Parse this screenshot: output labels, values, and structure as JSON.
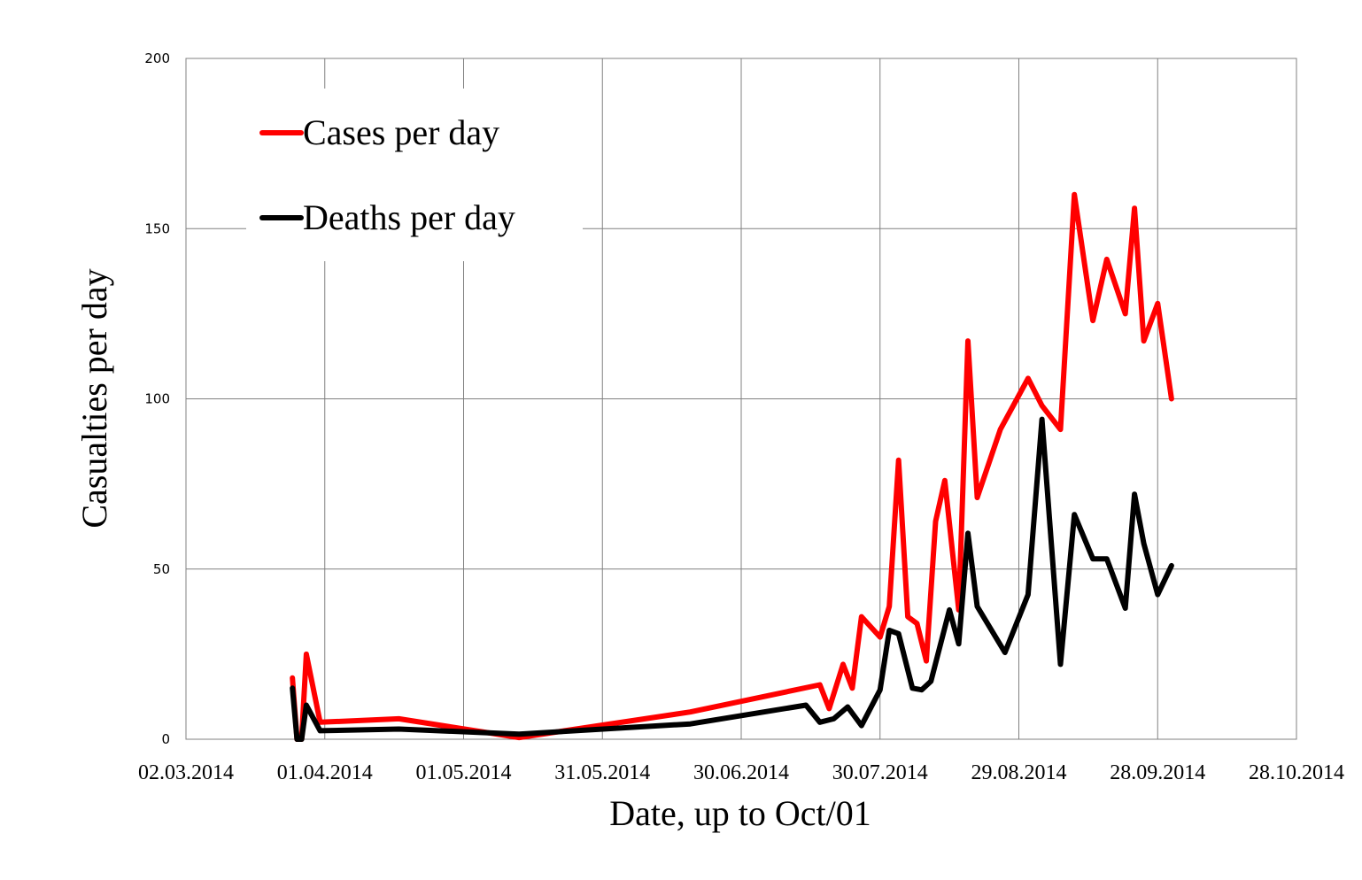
{
  "chart_data": {
    "type": "line",
    "title": "",
    "xlabel": "Date, up to Oct/01",
    "ylabel": "Casualties per day",
    "ylim": [
      0,
      200
    ],
    "yticks": [
      0,
      50,
      100,
      150,
      200
    ],
    "xlim": [
      "02.03.2014",
      "28.10.2014"
    ],
    "xticks": [
      "02.03.2014",
      "01.04.2014",
      "01.05.2014",
      "31.05.2014",
      "30.06.2014",
      "30.07.2014",
      "29.08.2014",
      "28.09.2014",
      "28.10.2014"
    ],
    "grid": true,
    "legend": "upper-left",
    "series": [
      {
        "name": "Cases per day",
        "color": "#ff0000",
        "points": [
          [
            "25.03.2014",
            18
          ],
          [
            "26.03.2014",
            0
          ],
          [
            "27.03.2014",
            0
          ],
          [
            "28.03.2014",
            25
          ],
          [
            "31.03.2014",
            5
          ],
          [
            "17.04.2014",
            6
          ],
          [
            "13.05.2014",
            0.5
          ],
          [
            "19.06.2014",
            8
          ],
          [
            "17.07.2014",
            16
          ],
          [
            "19.07.2014",
            9
          ],
          [
            "22.07.2014",
            22
          ],
          [
            "24.07.2014",
            15
          ],
          [
            "26.07.2014",
            36
          ],
          [
            "30.07.2014",
            30
          ],
          [
            "01.08.2014",
            39
          ],
          [
            "03.08.2014",
            82
          ],
          [
            "05.08.2014",
            36
          ],
          [
            "07.08.2014",
            34
          ],
          [
            "09.08.2014",
            23
          ],
          [
            "11.08.2014",
            64
          ],
          [
            "13.08.2014",
            76
          ],
          [
            "16.08.2014",
            38
          ],
          [
            "18.08.2014",
            117
          ],
          [
            "20.08.2014",
            71
          ],
          [
            "25.08.2014",
            91
          ],
          [
            "31.08.2014",
            106
          ],
          [
            "03.09.2014",
            98
          ],
          [
            "07.09.2014",
            91
          ],
          [
            "10.09.2014",
            160
          ],
          [
            "14.09.2014",
            123
          ],
          [
            "17.09.2014",
            141
          ],
          [
            "21.09.2014",
            125
          ],
          [
            "23.09.2014",
            156
          ],
          [
            "25.09.2014",
            117
          ],
          [
            "28.09.2014",
            128
          ],
          [
            "01.10.2014",
            100
          ]
        ]
      },
      {
        "name": "Deaths per day",
        "color": "#000000",
        "points": [
          [
            "25.03.2014",
            15
          ],
          [
            "26.03.2014",
            0
          ],
          [
            "27.03.2014",
            0
          ],
          [
            "28.03.2014",
            10
          ],
          [
            "31.03.2014",
            2.5
          ],
          [
            "17.04.2014",
            3
          ],
          [
            "13.05.2014",
            1.5
          ],
          [
            "19.06.2014",
            4.5
          ],
          [
            "14.07.2014",
            10
          ],
          [
            "17.07.2014",
            5
          ],
          [
            "20.07.2014",
            6
          ],
          [
            "23.07.2014",
            9.5
          ],
          [
            "26.07.2014",
            4
          ],
          [
            "30.07.2014",
            14.5
          ],
          [
            "01.08.2014",
            32
          ],
          [
            "03.08.2014",
            31
          ],
          [
            "06.08.2014",
            15
          ],
          [
            "08.08.2014",
            14.5
          ],
          [
            "10.08.2014",
            17
          ],
          [
            "14.08.2014",
            38
          ],
          [
            "16.08.2014",
            28
          ],
          [
            "18.08.2014",
            60.5
          ],
          [
            "20.08.2014",
            39
          ],
          [
            "26.08.2014",
            25.5
          ],
          [
            "31.08.2014",
            42.5
          ],
          [
            "03.09.2014",
            94
          ],
          [
            "07.09.2014",
            22
          ],
          [
            "10.09.2014",
            66
          ],
          [
            "14.09.2014",
            53
          ],
          [
            "17.09.2014",
            53
          ],
          [
            "21.09.2014",
            38.5
          ],
          [
            "23.09.2014",
            72
          ],
          [
            "25.09.2014",
            57.5
          ],
          [
            "28.09.2014",
            42.5
          ],
          [
            "01.10.2014",
            51
          ]
        ]
      }
    ]
  }
}
